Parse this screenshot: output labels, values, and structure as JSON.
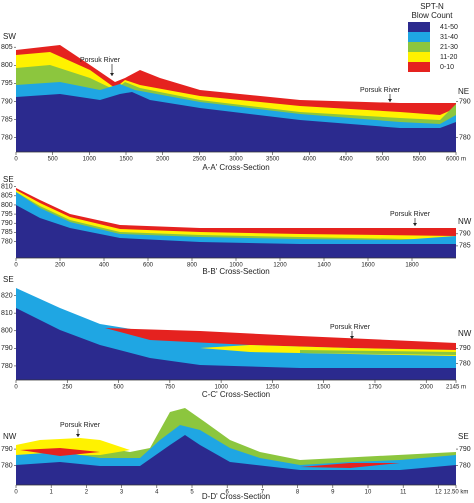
{
  "legend": {
    "title": [
      "SPT-N",
      "Blow Count"
    ],
    "items": [
      {
        "label": "41-50",
        "color": "#2b2a8e"
      },
      {
        "label": "31-40",
        "color": "#1fa6e3"
      },
      {
        "label": "21-30",
        "color": "#8cc63e"
      },
      {
        "label": "11-20",
        "color": "#fff200"
      },
      {
        "label": "0-10",
        "color": "#e5221f"
      }
    ]
  },
  "panels": [
    {
      "title": "A-A' Cross-Section",
      "left_label": "SW",
      "right_label": "NE",
      "rivers": [
        "Porsuk River",
        "Porsuk River"
      ],
      "xlim": [
        0,
        6000
      ],
      "xticks": [
        0,
        500,
        1000,
        1500,
        2000,
        2500,
        3000,
        3500,
        4000,
        4500,
        5000,
        5500,
        {
          "value": 6000,
          "label": "6000 m"
        }
      ],
      "ylim": [
        776,
        807
      ],
      "yticks": [
        805,
        800,
        795,
        790,
        785,
        780
      ],
      "y2lim": [
        776,
        807
      ],
      "y2ticks": [
        790,
        780
      ]
    },
    {
      "title": "B-B' Cross-Section",
      "left_label": "SE",
      "right_label": "NW",
      "rivers": [
        "Porsuk River"
      ],
      "xlim": [
        0,
        2000
      ],
      "xticks": [
        0,
        200,
        400,
        600,
        800,
        1000,
        1200,
        1400,
        1600,
        1800
      ],
      "ylim": [
        771,
        812
      ],
      "yticks": [
        810,
        805,
        800,
        795,
        790,
        785,
        780
      ],
      "y2lim": [
        780,
        811
      ],
      "y2ticks": [
        790,
        785
      ]
    },
    {
      "title": "C-C' Cross-Section",
      "left_label": "SE",
      "right_label": "NW",
      "rivers": [
        "Porsuk River"
      ],
      "xlim": [
        0,
        2145
      ],
      "xticks": [
        0,
        250,
        500,
        750,
        1000,
        1250,
        1500,
        1750,
        2000,
        {
          "value": 2145,
          "label": "2145 m"
        }
      ],
      "ylim": [
        772,
        826
      ],
      "yticks": [
        820,
        810,
        800,
        790,
        780
      ],
      "y2lim": [
        769,
        832
      ],
      "y2ticks": [
        790,
        780
      ]
    },
    {
      "title": "D-D' Cross-Section",
      "left_label": "NW",
      "right_label": "SE",
      "rivers": [
        "Porsuk River"
      ],
      "xlim": [
        0,
        12.5
      ],
      "xticks": [
        0,
        1,
        2,
        3,
        4,
        5,
        6,
        7,
        8,
        9,
        10,
        11,
        12,
        {
          "value": 12.5,
          "label": "12.50 km"
        }
      ],
      "ylim": [
        768,
        817
      ],
      "yticks": [
        790,
        780
      ],
      "y2lim": [
        768,
        817
      ],
      "y2ticks": [
        790,
        780
      ]
    }
  ]
}
